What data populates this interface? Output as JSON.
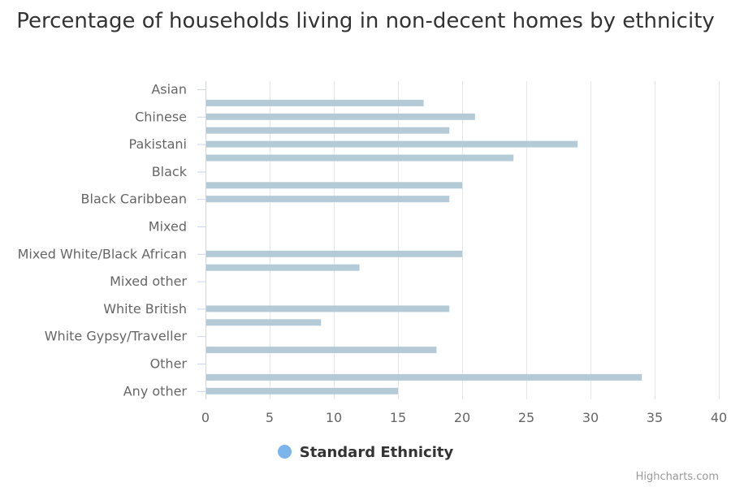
{
  "chart_data": {
    "type": "bar",
    "orientation": "horizontal",
    "title": "Percentage of households living in non-decent homes by ethnicity",
    "categories": [
      "Asian",
      "Chinese",
      "Pakistani",
      "Black",
      "Black Caribbean",
      "Mixed",
      "Mixed White/Black African",
      "Mixed other",
      "White British",
      "White Gypsy/Traveller",
      "Other",
      "Any other"
    ],
    "bars": [
      {
        "y": 0.5,
        "value": 17
      },
      {
        "y": 1.0,
        "value": 21
      },
      {
        "y": 1.5,
        "value": 19
      },
      {
        "y": 2.0,
        "value": 29
      },
      {
        "y": 2.5,
        "value": 24
      },
      {
        "y": 3.5,
        "value": 20
      },
      {
        "y": 4.0,
        "value": 19
      },
      {
        "y": 6.0,
        "value": 20
      },
      {
        "y": 6.5,
        "value": 12
      },
      {
        "y": 8.0,
        "value": 19
      },
      {
        "y": 8.5,
        "value": 9
      },
      {
        "y": 9.5,
        "value": 18
      },
      {
        "y": 10.5,
        "value": 34
      },
      {
        "y": 11.0,
        "value": 15
      }
    ],
    "xlim": [
      0,
      40
    ],
    "x_ticks": [
      0,
      5,
      10,
      15,
      20,
      25,
      30,
      35,
      40
    ],
    "grid": true,
    "legend_position": "bottom-center",
    "series": [
      {
        "name": "Standard Ethnicity",
        "color": "#b4cad7",
        "legend_color": "#7cb5ec"
      }
    ],
    "credits": "Highcharts.com"
  }
}
